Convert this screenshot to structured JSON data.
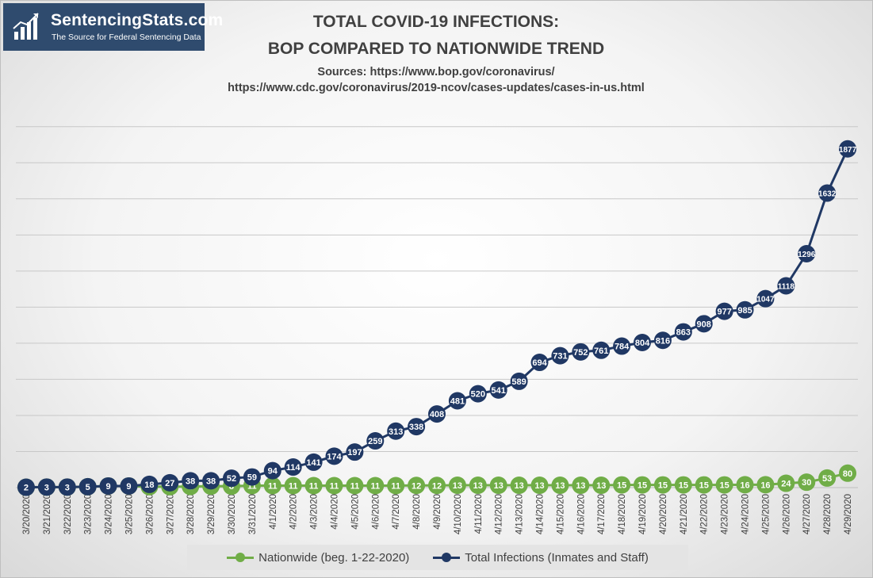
{
  "logo": {
    "name": "SentencingStats.com",
    "tagline": "The Source for Federal Sentencing Data"
  },
  "chart_data": {
    "type": "line",
    "title": "TOTAL COVID-19 INFECTIONS:",
    "subtitle": "BOP COMPARED TO NATIONWIDE TREND",
    "sources": [
      "Sources: https://www.bop.gov/coronavirus/",
      "https://www.cdc.gov/coronavirus/2019-ncov/cases-updates/cases-in-us.html"
    ],
    "categories": [
      "3/20/2020",
      "3/21/2020",
      "3/22/2020",
      "3/23/2020",
      "3/24/2020",
      "3/25/2020",
      "3/26/2020",
      "3/27/2020",
      "3/28/2020",
      "3/29/2020",
      "3/30/2020",
      "3/31/2020",
      "4/1/2020",
      "4/2/2020",
      "4/3/2020",
      "4/4/2020",
      "4/5/2020",
      "4/6/2020",
      "4/7/2020",
      "4/8/2020",
      "4/9/2020",
      "4/10/2020",
      "4/11/2020",
      "4/12/2020",
      "4/13/2020",
      "4/14/2020",
      "4/15/2020",
      "4/16/2020",
      "4/17/2020",
      "4/18/2020",
      "4/19/2020",
      "4/20/2020",
      "4/21/2020",
      "4/22/2020",
      "4/23/2020",
      "4/24/2020",
      "4/25/2020",
      "4/26/2020",
      "4/27/2020",
      "4/28/2020",
      "4/29/2020"
    ],
    "series": [
      {
        "name": "Nationwide (beg. 1-22-2020)",
        "color": "#70ad47",
        "values": [
          2,
          3,
          3,
          5,
          9,
          9,
          5,
          5,
          6,
          8,
          8,
          11,
          11,
          11,
          11,
          11,
          11,
          11,
          11,
          12,
          12,
          13,
          13,
          13,
          13,
          13,
          13,
          13,
          13,
          15,
          15,
          15,
          15,
          15,
          15,
          16,
          16,
          24,
          30,
          53,
          80
        ]
      },
      {
        "name": "Total Infections (Inmates and Staff)",
        "color": "#203864",
        "values": [
          2,
          3,
          3,
          5,
          9,
          9,
          18,
          27,
          38,
          38,
          52,
          59,
          94,
          114,
          141,
          174,
          197,
          259,
          313,
          338,
          408,
          481,
          520,
          541,
          589,
          694,
          731,
          752,
          761,
          784,
          804,
          816,
          863,
          908,
          977,
          985,
          1047,
          1118,
          1296,
          1632,
          1877
        ]
      }
    ],
    "ylim": [
      0,
      2100
    ],
    "grid": true,
    "legend_position": "bottom"
  }
}
